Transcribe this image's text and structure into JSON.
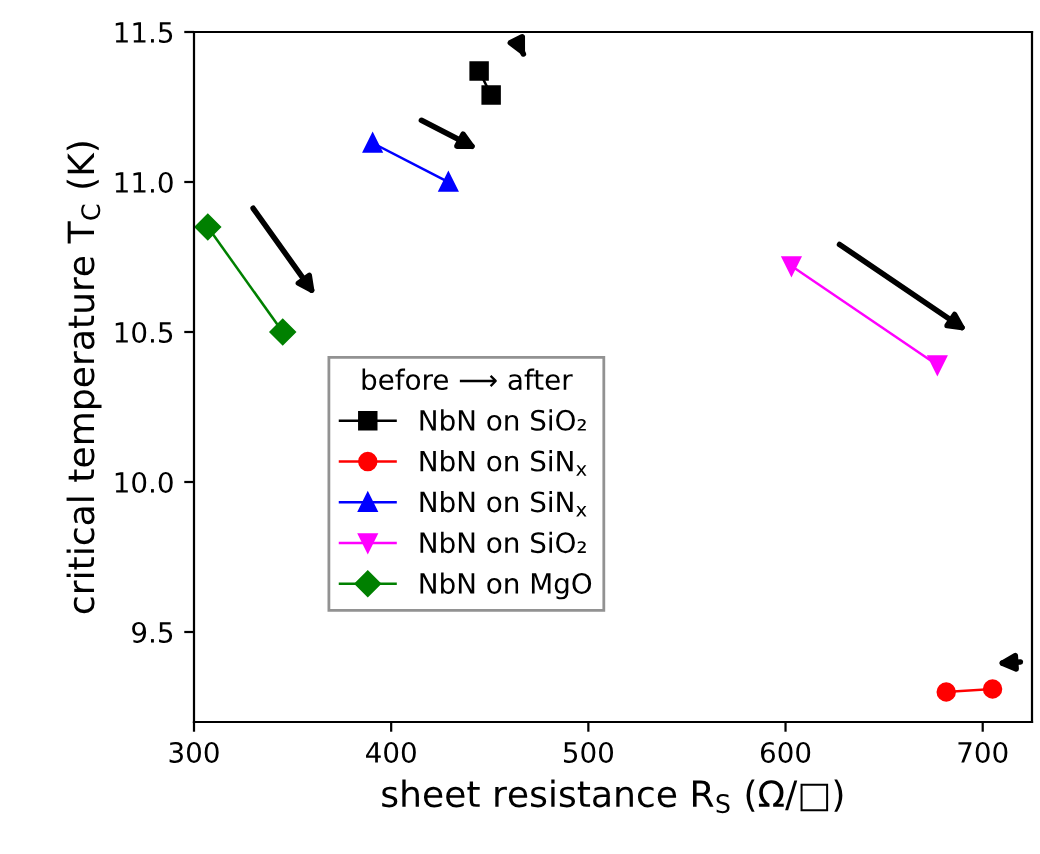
{
  "chart_data": {
    "type": "line",
    "xlabel": "sheet resistance R$_{S}$ (Ω/□)",
    "ylabel": "critical temperature T$_{C}$ (K)",
    "legend_title": "before ⟶ after",
    "series": [
      {
        "name": "NbN on SiO₂",
        "color": "#000000",
        "marker": "square",
        "x": [
          444.6,
          450.7
        ],
        "values": [
          11.37,
          11.29
        ]
      },
      {
        "name": "NbN on SiN$_{x}$",
        "color": "#ff0000",
        "marker": "circle",
        "x": [
          705,
          681.5
        ],
        "values": [
          9.31,
          9.3
        ]
      },
      {
        "name": "NbN on SiN$_{x}$",
        "color": "#0000ff",
        "marker": "triangle",
        "x": [
          390.6,
          429
        ],
        "values": [
          11.13,
          11.0
        ]
      },
      {
        "name": "NbN on SiO₂",
        "color": "#ff00ff",
        "marker": "triangle_down",
        "x": [
          603,
          677
        ],
        "values": [
          10.72,
          10.39
        ]
      },
      {
        "name": "NbN on MgO",
        "color": "#008000",
        "marker": "diamond",
        "x": [
          307,
          345
        ],
        "values": [
          10.85,
          10.5
        ]
      }
    ],
    "xlim": [
      300,
      725
    ],
    "ylim": [
      9.2,
      11.5
    ],
    "xticks": [
      300,
      400,
      500,
      600,
      700
    ],
    "yticks": [
      {
        "value": 9.5,
        "label": "9.5"
      },
      {
        "value": 10.0,
        "label": "10.0"
      },
      {
        "value": 10.5,
        "label": "10.5"
      },
      {
        "value": 11.0,
        "label": "11.0"
      },
      {
        "value": 11.5,
        "label": "11.5"
      }
    ],
    "legend": "center",
    "grid": false
  }
}
